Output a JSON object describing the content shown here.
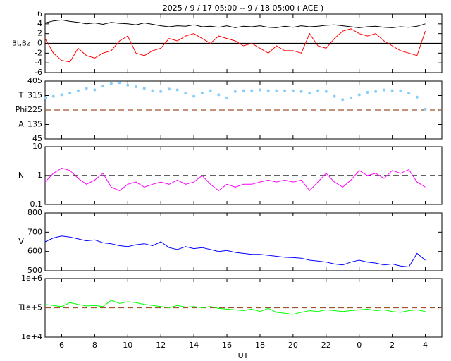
{
  "chart_data": {
    "title": "2025 /  9 / 17   05:00 --  9 / 18   05:00 ( ACE )",
    "xlabel": "UT",
    "xlim": [
      5,
      29
    ],
    "xticks": [
      6,
      8,
      10,
      12,
      14,
      16,
      18,
      20,
      22,
      {
        "value": 24,
        "label": "0"
      },
      {
        "value": 26,
        "label": "2"
      },
      {
        "value": 28,
        "label": "4"
      }
    ],
    "x": [
      5,
      5.5,
      6,
      6.5,
      7,
      7.5,
      8,
      8.5,
      9,
      9.5,
      10,
      10.5,
      11,
      11.5,
      12,
      12.5,
      13,
      13.5,
      14,
      14.5,
      15,
      15.5,
      16,
      16.5,
      17,
      17.5,
      18,
      18.5,
      19,
      19.5,
      20,
      20.5,
      21,
      21.5,
      22,
      22.5,
      23,
      23.5,
      24,
      24.5,
      25,
      25.5,
      26,
      26.5,
      27,
      27.5,
      28
    ],
    "panels": [
      {
        "type": "line",
        "ylabel": [
          "Bt,Bz"
        ],
        "ylim": [
          -6,
          6
        ],
        "yticks": [
          -6,
          -4,
          -2,
          0,
          2,
          4,
          6
        ],
        "log": false,
        "refline": {
          "value": 0,
          "color": "#000000",
          "dashed": false
        },
        "series": [
          {
            "name": "Bt",
            "color": "#000000",
            "values": [
              4.2,
              4.6,
              4.8,
              4.5,
              4.3,
              4.0,
              4.2,
              3.9,
              4.3,
              4.1,
              4.0,
              3.8,
              4.2,
              3.9,
              3.6,
              3.4,
              3.6,
              3.5,
              3.8,
              3.4,
              3.5,
              3.3,
              3.6,
              3.2,
              3.5,
              3.4,
              3.6,
              3.3,
              3.2,
              3.5,
              3.3,
              3.6,
              3.4,
              3.5,
              3.7,
              3.8,
              3.6,
              3.4,
              3.2,
              3.4,
              3.5,
              3.3,
              3.2,
              3.4,
              3.3,
              3.5,
              4.0
            ]
          },
          {
            "name": "Bz",
            "color": "#ff0000",
            "values": [
              1,
              -2,
              -3.5,
              -3.8,
              -1,
              -2.5,
              -3,
              -2,
              -1.5,
              0.5,
              1.5,
              -2,
              -2.5,
              -1.5,
              -1,
              1,
              0.5,
              1.5,
              2,
              1,
              0,
              1.5,
              1,
              0.5,
              -0.5,
              0,
              -1,
              -2,
              -0.5,
              -1.5,
              -1.5,
              -2,
              2,
              -0.5,
              -1,
              1,
              2.5,
              3,
              2,
              1.5,
              2,
              0.5,
              -0.5,
              -1.5,
              -2,
              -2.5,
              2.5
            ]
          }
        ]
      },
      {
        "type": "scatter",
        "ylabel": [
          "T",
          "Phi",
          "A"
        ],
        "ylim": [
          45,
          405
        ],
        "yticks": [
          45,
          135,
          225,
          315,
          405
        ],
        "log": false,
        "refline": {
          "value": 225,
          "color": "#a0522d",
          "dashed": true
        },
        "series": [
          {
            "name": "Phi",
            "color": "#87cefa",
            "values": [
              300,
              310,
              320,
              330,
              345,
              360,
              350,
              375,
              390,
              395,
              380,
              370,
              360,
              345,
              340,
              355,
              350,
              330,
              310,
              330,
              345,
              320,
              300,
              340,
              345,
              345,
              350,
              345,
              345,
              345,
              345,
              340,
              330,
              345,
              340,
              310,
              290,
              300,
              320,
              335,
              340,
              350,
              345,
              345,
              330,
              305,
              230
            ]
          }
        ]
      },
      {
        "type": "line",
        "ylabel": [
          "N"
        ],
        "ylim": [
          0.1,
          10
        ],
        "yticks": [
          0.1,
          1,
          10
        ],
        "log": true,
        "refline": {
          "value": 1,
          "color": "#000000",
          "dashed": true
        },
        "series": [
          {
            "name": "N",
            "color": "#ff00ff",
            "values": [
              0.6,
              1.2,
              1.8,
              1.5,
              0.8,
              0.5,
              0.7,
              1.2,
              0.4,
              0.3,
              0.5,
              0.6,
              0.4,
              0.5,
              0.6,
              0.5,
              0.7,
              0.5,
              0.6,
              1.0,
              0.5,
              0.3,
              0.5,
              0.4,
              0.5,
              0.5,
              0.6,
              0.7,
              0.6,
              0.7,
              0.6,
              0.7,
              0.3,
              0.6,
              1.2,
              0.6,
              0.4,
              0.7,
              1.5,
              1.0,
              1.2,
              0.8,
              1.5,
              1.2,
              1.6,
              0.6,
              0.4
            ]
          }
        ]
      },
      {
        "type": "line",
        "ylabel": [
          "V"
        ],
        "ylim": [
          500,
          800
        ],
        "yticks": [
          500,
          600,
          700,
          800
        ],
        "log": false,
        "series": [
          {
            "name": "V",
            "color": "#0000ff",
            "values": [
              650,
              670,
              680,
              675,
              665,
              655,
              660,
              645,
              640,
              630,
              625,
              635,
              640,
              630,
              650,
              620,
              610,
              625,
              615,
              620,
              610,
              600,
              605,
              595,
              590,
              585,
              585,
              580,
              575,
              570,
              568,
              565,
              555,
              550,
              545,
              535,
              530,
              545,
              555,
              545,
              540,
              530,
              535,
              525,
              520,
              590,
              555
            ]
          }
        ]
      },
      {
        "type": "line",
        "ylabel": [
          "T"
        ],
        "ylim": [
          10000,
          1000000
        ],
        "yticks": [
          {
            "value": 10000,
            "label": "1e+4"
          },
          {
            "value": 100000,
            "label": "1e+5"
          },
          {
            "value": 1000000,
            "label": "1e+6"
          }
        ],
        "log": true,
        "refline": {
          "value": 100000,
          "color": "#a0522d",
          "dashed": true
        },
        "series": [
          {
            "name": "T",
            "color": "#00ff00",
            "values": [
              130000,
              120000,
              110000,
              150000,
              130000,
              115000,
              120000,
              110000,
              180000,
              140000,
              160000,
              150000,
              130000,
              120000,
              110000,
              100000,
              120000,
              105000,
              110000,
              100000,
              110000,
              95000,
              90000,
              85000,
              80000,
              90000,
              75000,
              95000,
              70000,
              65000,
              60000,
              70000,
              80000,
              75000,
              85000,
              80000,
              75000,
              80000,
              85000,
              90000,
              80000,
              85000,
              75000,
              70000,
              80000,
              85000,
              75000
            ]
          }
        ]
      }
    ]
  }
}
